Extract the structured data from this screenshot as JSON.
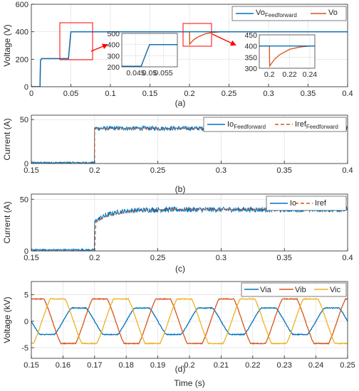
{
  "colors": {
    "blue": "#0072BD",
    "orange": "#D95319",
    "yellow": "#EDB120",
    "red_box": "#FF0000",
    "axis": "#262626",
    "grid": "#DFDFDF"
  },
  "chart_data": [
    {
      "id": "a",
      "type": "line",
      "caption": "(a)",
      "ylabel": "Voltage (V)",
      "xlabel": "",
      "xlim": [
        0,
        0.4
      ],
      "ylim": [
        0,
        600
      ],
      "xticks": [
        0,
        0.05,
        0.1,
        0.15,
        0.2,
        0.25,
        0.3,
        0.35,
        0.4
      ],
      "xtick_labels": [
        "0",
        "0.05",
        "0.1",
        "0.15",
        "0.2",
        "0.25",
        "0.3",
        "0.35",
        "0.4"
      ],
      "yticks": [
        0,
        200,
        400,
        600
      ],
      "ytick_labels": [
        "0",
        "200",
        "400",
        "600"
      ],
      "grid": true,
      "legend": "top-right",
      "series": [
        {
          "name_main": "Vo",
          "name_sub": "Feedforward",
          "color": "blue",
          "x": [
            0,
            0.011,
            0.0115,
            0.013,
            0.047,
            0.0475,
            0.05,
            0.055,
            0.2,
            0.2005,
            0.4
          ],
          "y": [
            0,
            0,
            190,
            205,
            205,
            240,
            400,
            400,
            400,
            400,
            400
          ]
        },
        {
          "name_main": "Vo",
          "name_sub": "",
          "color": "orange",
          "x": [
            0,
            0.011,
            0.0115,
            0.013,
            0.047,
            0.0475,
            0.05,
            0.055,
            0.2,
            0.2003,
            0.205,
            0.21,
            0.22,
            0.23,
            0.24,
            0.4
          ],
          "y": [
            0,
            0,
            190,
            205,
            205,
            240,
            400,
            400,
            400,
            310,
            340,
            360,
            385,
            395,
            400,
            400
          ]
        }
      ],
      "insets": [
        {
          "xlim": [
            0.04,
            0.06
          ],
          "ylim": [
            200,
            500
          ],
          "xticks": [
            0.045,
            0.05,
            0.055
          ],
          "xtick_labels": [
            "0.045",
            "0.05",
            "0.055"
          ],
          "yticks": [
            200,
            300,
            400,
            500
          ],
          "ytick_labels": [
            "200",
            "300",
            "400",
            "500"
          ]
        },
        {
          "xlim": [
            0.19,
            0.245
          ],
          "ylim": [
            300,
            450
          ],
          "xticks": [
            0.2,
            0.22,
            0.24
          ],
          "xtick_labels": [
            "0.2",
            "0.22",
            "0.24"
          ],
          "yticks": [
            300,
            350,
            400,
            450
          ],
          "ytick_labels": [
            "300",
            "350",
            "400",
            "450"
          ]
        }
      ]
    },
    {
      "id": "b",
      "type": "line",
      "caption": "(b)",
      "ylabel": "Current (A)",
      "xlabel": "",
      "xlim": [
        0.15,
        0.4
      ],
      "ylim": [
        0,
        55
      ],
      "xticks": [
        0.15,
        0.2,
        0.25,
        0.3,
        0.35,
        0.4
      ],
      "xtick_labels": [
        "0.15",
        "0.2",
        "0.25",
        "0.3",
        "0.35",
        "0.4"
      ],
      "yticks": [
        0,
        50
      ],
      "ytick_labels": [
        "0",
        "50"
      ],
      "grid": true,
      "legend": "top-right",
      "series": [
        {
          "name_main": "Io",
          "name_sub": "Feedforward",
          "color": "blue",
          "style": "solid",
          "low_level": 1,
          "high_level": 40,
          "step_at": 0.2,
          "ripple": 2.5
        },
        {
          "name_main": "Iref",
          "name_sub": "Feedforward",
          "color": "orange",
          "style": "dashed",
          "x": [
            0.15,
            0.2,
            0.2,
            0.4
          ],
          "y": [
            0,
            0,
            40,
            40
          ]
        }
      ]
    },
    {
      "id": "c",
      "type": "line",
      "caption": "(c)",
      "ylabel": "Current (A)",
      "xlabel": "",
      "xlim": [
        0.15,
        0.4
      ],
      "ylim": [
        0,
        55
      ],
      "xticks": [
        0.15,
        0.2,
        0.25,
        0.3,
        0.35,
        0.4
      ],
      "xtick_labels": [
        "0.15",
        "0.2",
        "0.25",
        "0.3",
        "0.35",
        "0.4"
      ],
      "yticks": [
        0,
        50
      ],
      "ytick_labels": [
        "0",
        "50"
      ],
      "grid": true,
      "legend": "top-right",
      "series": [
        {
          "name_main": "Io",
          "name_sub": "",
          "color": "blue",
          "style": "solid",
          "low_level": 1,
          "high_level": 40,
          "step_at": 0.2,
          "rise": "exponential",
          "ripple": 2.5
        },
        {
          "name_main": "Iref",
          "name_sub": "",
          "color": "orange",
          "style": "dashed",
          "x": [
            0.15,
            0.2,
            0.201,
            0.21,
            0.22,
            0.23,
            0.25,
            0.4
          ],
          "y": [
            0,
            0,
            28,
            34,
            37,
            38.5,
            40,
            40
          ]
        }
      ]
    },
    {
      "id": "d",
      "type": "line",
      "caption": "(d)",
      "ylabel": "Voltage (kV)",
      "xlabel": "Time (s)",
      "xlim": [
        0.15,
        0.25
      ],
      "ylim": [
        -7,
        7.5
      ],
      "xticks": [
        0.15,
        0.16,
        0.17,
        0.18,
        0.19,
        0.2,
        0.21,
        0.22,
        0.23,
        0.24,
        0.25
      ],
      "xtick_labels": [
        "0.15",
        "0.16",
        "0.17",
        "0.18",
        "0.19",
        "0.2",
        "0.21",
        "0.22",
        "0.23",
        "0.24",
        "0.25"
      ],
      "yticks": [
        -5,
        0,
        5
      ],
      "ytick_labels": [
        "-5",
        "0",
        "5"
      ],
      "grid": true,
      "legend": "top-right, horizontal",
      "frequency_hz": 50,
      "series": [
        {
          "name_main": "Via",
          "color": "blue",
          "amplitude": 2.5,
          "phase_deg": 0
        },
        {
          "name_main": "Vib",
          "color": "orange",
          "amplitude": 4.2,
          "phase_deg": -120
        },
        {
          "name_main": "Vic",
          "color": "yellow",
          "amplitude": 4.2,
          "phase_deg": 120
        }
      ]
    }
  ]
}
